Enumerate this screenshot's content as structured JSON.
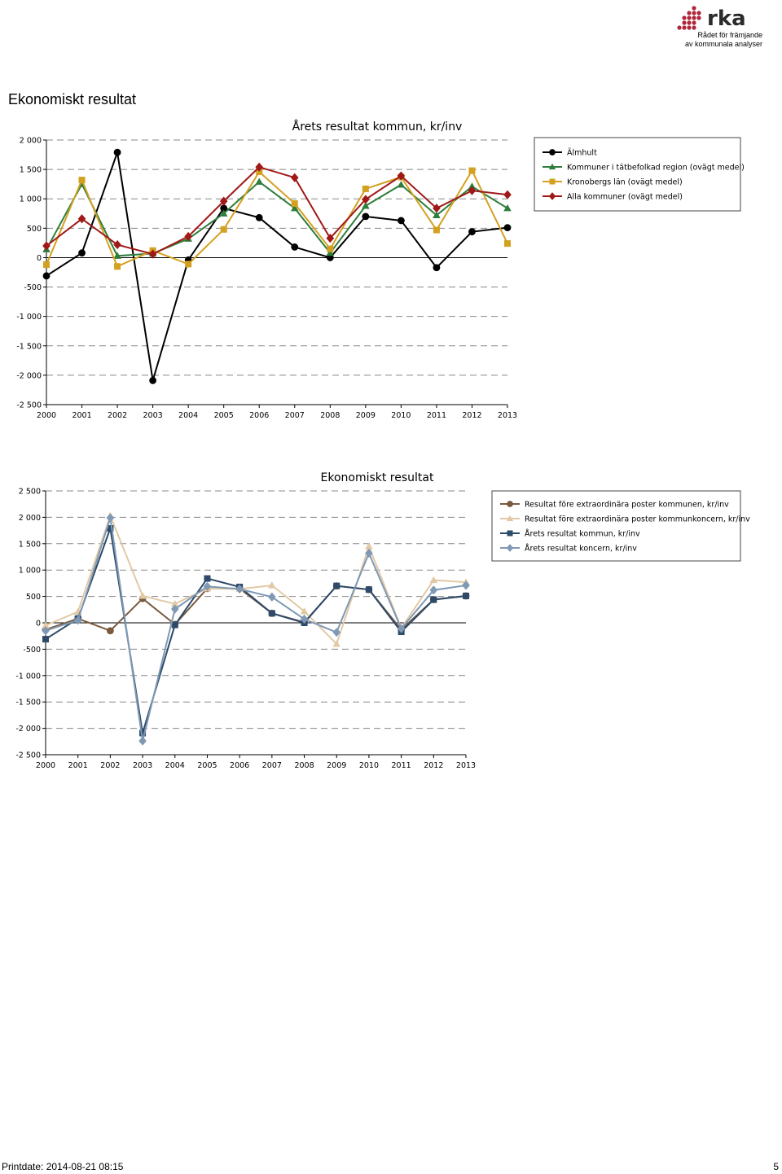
{
  "logo": {
    "word": "rka",
    "line1": "Rådet för främjande",
    "line2": "av kommunala analyser",
    "color": "#b0263a"
  },
  "heading": "Ekonomiskt resultat",
  "footer": {
    "printdate": "Printdate: 2014-08-21 08:15",
    "page": "5"
  },
  "chart_data": [
    {
      "type": "line",
      "title": "Årets resultat kommun, kr/inv",
      "xlabel": "",
      "ylabel": "",
      "ylim": [
        -2500,
        2000
      ],
      "yticks": [
        2000,
        1500,
        1000,
        500,
        0,
        -500,
        -1000,
        -1500,
        -2000,
        -2500
      ],
      "ytick_labels": [
        "2 000",
        "1 500",
        "1 000",
        "500",
        "0",
        "-500",
        "-1 000",
        "-1 500",
        "-2 000",
        "-2 500"
      ],
      "categories": [
        "2000",
        "2001",
        "2002",
        "2003",
        "2004",
        "2005",
        "2006",
        "2007",
        "2008",
        "2009",
        "2010",
        "2011",
        "2012",
        "2013"
      ],
      "grid": "horizontal-dashed",
      "legend_position": "top-right",
      "series": [
        {
          "name": "Älmhult",
          "color": "#000000",
          "marker": "circle",
          "values": [
            -310,
            80,
            1790,
            -2090,
            -40,
            840,
            680,
            180,
            0,
            700,
            630,
            -170,
            440,
            510
          ]
        },
        {
          "name": "Kommuner i tätbefolkad region (ovägt medel)",
          "color": "#2e7d3a",
          "marker": "triangle",
          "values": [
            140,
            1250,
            30,
            70,
            320,
            750,
            1290,
            840,
            80,
            880,
            1240,
            720,
            1210,
            840
          ]
        },
        {
          "name": "Kronobergs län (ovägt medel)",
          "color": "#d4a020",
          "marker": "square",
          "values": [
            -120,
            1320,
            -150,
            120,
            -110,
            480,
            1460,
            920,
            150,
            1170,
            1370,
            470,
            1480,
            240
          ]
        },
        {
          "name": "Alla kommuner (ovägt medel)",
          "color": "#a01818",
          "marker": "diamond",
          "values": [
            200,
            660,
            220,
            60,
            360,
            960,
            1540,
            1360,
            330,
            990,
            1390,
            840,
            1140,
            1070
          ]
        }
      ]
    },
    {
      "type": "line",
      "title": "Ekonomiskt resultat",
      "xlabel": "",
      "ylabel": "",
      "ylim": [
        -2500,
        2500
      ],
      "yticks": [
        2500,
        2000,
        1500,
        1000,
        500,
        0,
        -500,
        -1000,
        -1500,
        -2000,
        -2500
      ],
      "ytick_labels": [
        "2 500",
        "2 000",
        "1 500",
        "1 000",
        "500",
        "0",
        "-500",
        "-1 000",
        "-1 500",
        "-2 000",
        "-2 500"
      ],
      "categories": [
        "2000",
        "2001",
        "2002",
        "2003",
        "2004",
        "2005",
        "2006",
        "2007",
        "2008",
        "2009",
        "2010",
        "2011",
        "2012",
        "2013"
      ],
      "grid": "horizontal-dashed",
      "legend_position": "top-right",
      "series": [
        {
          "name": "Resultat före extraordinära poster kommunen, kr/inv",
          "color": "#7a5a3e",
          "marker": "circle",
          "values": [
            -130,
            80,
            -150,
            460,
            -30,
            650,
            650,
            180,
            10,
            700,
            630,
            -130,
            440,
            510
          ]
        },
        {
          "name": "Resultat före extraordinära poster kommunkoncern, kr/inv",
          "color": "#e2c9a5",
          "marker": "triangle",
          "values": [
            -50,
            210,
            2030,
            510,
            360,
            650,
            640,
            710,
            220,
            -400,
            1450,
            -100,
            810,
            770
          ]
        },
        {
          "name": "Årets resultat kommun, kr/inv",
          "color": "#2d4a6a",
          "marker": "square",
          "values": [
            -310,
            80,
            1790,
            -2090,
            -40,
            840,
            680,
            180,
            0,
            700,
            630,
            -170,
            440,
            510
          ]
        },
        {
          "name": "Årets resultat koncern, kr/inv",
          "color": "#7f99b5",
          "marker": "diamond",
          "values": [
            -150,
            50,
            1990,
            -2240,
            260,
            690,
            640,
            490,
            70,
            -180,
            1320,
            -110,
            620,
            710
          ]
        }
      ]
    }
  ]
}
